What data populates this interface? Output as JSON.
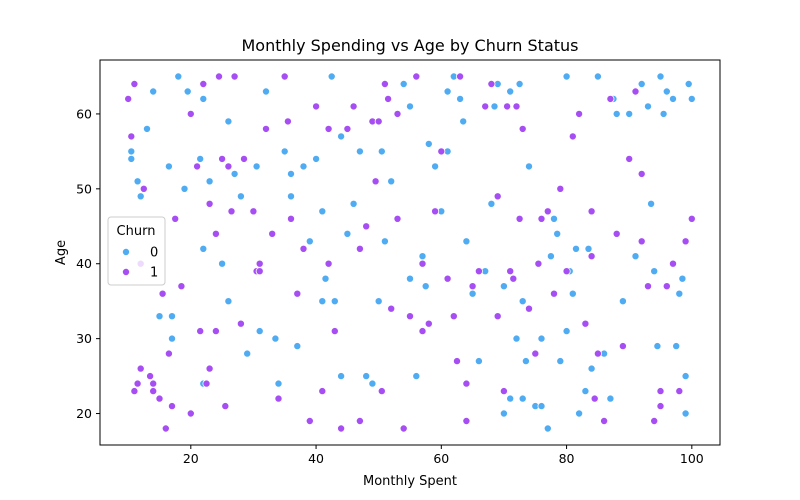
{
  "chart_data": {
    "type": "scatter",
    "title": "Monthly Spending vs Age by Churn Status",
    "xlabel": "Monthly Spent",
    "ylabel": "Age",
    "xlim": [
      5.5,
      104.5
    ],
    "ylim": [
      15.8,
      67.2
    ],
    "xticks": [
      20,
      40,
      60,
      80,
      100
    ],
    "yticks": [
      20,
      30,
      40,
      50,
      60
    ],
    "grid": false,
    "legend": {
      "title": "Churn",
      "placement": "center-left"
    },
    "series": [
      {
        "name": "0",
        "color": "#4facf3",
        "points": [
          [
            10.5,
            54
          ],
          [
            10.5,
            55
          ],
          [
            11.5,
            51
          ],
          [
            12,
            49
          ],
          [
            13,
            58
          ],
          [
            15,
            33
          ],
          [
            16.5,
            53
          ],
          [
            17,
            33
          ],
          [
            18,
            65
          ],
          [
            19,
            50
          ],
          [
            19.5,
            63
          ],
          [
            21.5,
            54
          ],
          [
            22,
            42
          ],
          [
            22,
            62
          ],
          [
            23,
            51
          ],
          [
            25,
            40
          ],
          [
            26,
            59
          ],
          [
            27,
            52
          ],
          [
            28,
            49
          ],
          [
            29,
            28
          ],
          [
            30.5,
            53
          ],
          [
            31,
            31
          ],
          [
            32,
            63
          ],
          [
            33.5,
            30
          ],
          [
            34,
            24
          ],
          [
            35,
            55
          ],
          [
            36,
            49
          ],
          [
            37,
            29
          ],
          [
            38,
            53
          ],
          [
            39,
            43
          ],
          [
            40,
            54
          ],
          [
            41,
            47
          ],
          [
            41.5,
            38
          ],
          [
            42.5,
            65
          ],
          [
            43,
            35
          ],
          [
            44,
            57
          ],
          [
            45,
            44
          ],
          [
            46,
            48
          ],
          [
            47,
            55
          ],
          [
            48,
            25
          ],
          [
            49,
            24
          ],
          [
            50,
            35
          ],
          [
            50.5,
            55
          ],
          [
            51,
            43
          ],
          [
            52,
            51
          ],
          [
            53,
            46
          ],
          [
            54,
            64
          ],
          [
            55,
            38
          ],
          [
            56,
            25
          ],
          [
            57,
            41
          ],
          [
            57.5,
            37
          ],
          [
            58,
            56
          ],
          [
            59,
            53
          ],
          [
            60,
            47
          ],
          [
            61,
            63
          ],
          [
            62,
            65
          ],
          [
            63,
            62
          ],
          [
            63.5,
            59
          ],
          [
            64,
            43
          ],
          [
            65,
            36
          ],
          [
            66,
            27
          ],
          [
            67,
            39
          ],
          [
            68,
            48
          ],
          [
            68.5,
            61
          ],
          [
            69,
            64
          ],
          [
            70,
            20
          ],
          [
            70,
            37
          ],
          [
            71,
            63
          ],
          [
            72,
            30
          ],
          [
            72.5,
            64
          ],
          [
            73,
            35
          ],
          [
            73.5,
            27
          ],
          [
            74,
            53
          ],
          [
            75,
            21
          ],
          [
            76,
            30
          ],
          [
            77,
            18
          ],
          [
            77.5,
            41
          ],
          [
            78,
            46
          ],
          [
            78.5,
            44
          ],
          [
            79,
            27
          ],
          [
            80,
            31
          ],
          [
            80,
            65
          ],
          [
            80.5,
            39
          ],
          [
            81,
            36
          ],
          [
            81.5,
            42
          ],
          [
            82,
            20
          ],
          [
            83,
            23
          ],
          [
            83.5,
            42
          ],
          [
            84,
            26
          ],
          [
            85,
            65
          ],
          [
            86,
            28
          ],
          [
            87,
            22
          ],
          [
            87.5,
            62
          ],
          [
            88,
            60
          ],
          [
            89,
            35
          ],
          [
            90,
            60
          ],
          [
            91,
            41
          ],
          [
            92,
            64
          ],
          [
            93,
            61
          ],
          [
            93.5,
            48
          ],
          [
            94,
            39
          ],
          [
            94.5,
            29
          ],
          [
            95,
            65
          ],
          [
            95.5,
            60
          ],
          [
            96,
            63
          ],
          [
            97,
            62
          ],
          [
            97.5,
            29
          ],
          [
            98,
            36
          ],
          [
            98.5,
            38
          ],
          [
            99,
            20
          ],
          [
            99,
            25
          ],
          [
            99.5,
            64
          ],
          [
            100,
            62
          ],
          [
            39,
            43
          ],
          [
            41,
            35
          ],
          [
            44,
            25
          ],
          [
            36,
            52
          ],
          [
            26,
            35
          ],
          [
            22,
            24
          ],
          [
            14,
            63
          ],
          [
            17,
            30
          ],
          [
            55,
            61
          ],
          [
            58,
            56
          ],
          [
            61,
            55
          ],
          [
            71,
            22
          ],
          [
            73,
            22
          ],
          [
            76,
            21
          ]
        ]
      },
      {
        "name": "1",
        "color": "#a64ef3",
        "points": [
          [
            10,
            62
          ],
          [
            10.5,
            57
          ],
          [
            11,
            64
          ],
          [
            11,
            23
          ],
          [
            11.5,
            24
          ],
          [
            12,
            26
          ],
          [
            12,
            40
          ],
          [
            12.5,
            50
          ],
          [
            13.5,
            25
          ],
          [
            14,
            23
          ],
          [
            15,
            22
          ],
          [
            15.5,
            36
          ],
          [
            16,
            18
          ],
          [
            16.5,
            28
          ],
          [
            17,
            21
          ],
          [
            17.5,
            46
          ],
          [
            18.5,
            37
          ],
          [
            20,
            60
          ],
          [
            21,
            53
          ],
          [
            21.5,
            31
          ],
          [
            22,
            64
          ],
          [
            22.5,
            24
          ],
          [
            23,
            26
          ],
          [
            23,
            48
          ],
          [
            24,
            44
          ],
          [
            24.5,
            65
          ],
          [
            25,
            54
          ],
          [
            25.5,
            21
          ],
          [
            26,
            53
          ],
          [
            26.5,
            47
          ],
          [
            27,
            65
          ],
          [
            28,
            32
          ],
          [
            28.5,
            54
          ],
          [
            30,
            47
          ],
          [
            30.5,
            39
          ],
          [
            31,
            40
          ],
          [
            32,
            58
          ],
          [
            33,
            44
          ],
          [
            34,
            22
          ],
          [
            35,
            65
          ],
          [
            35.5,
            59
          ],
          [
            36,
            46
          ],
          [
            37,
            36
          ],
          [
            38,
            42
          ],
          [
            39,
            19
          ],
          [
            40,
            61
          ],
          [
            41,
            23
          ],
          [
            42,
            40
          ],
          [
            43,
            31
          ],
          [
            44,
            18
          ],
          [
            45,
            58
          ],
          [
            46,
            61
          ],
          [
            47,
            19
          ],
          [
            48,
            45
          ],
          [
            49,
            59
          ],
          [
            49.5,
            51
          ],
          [
            50,
            59
          ],
          [
            50.5,
            23
          ],
          [
            51,
            64
          ],
          [
            51.5,
            62
          ],
          [
            52,
            34
          ],
          [
            53,
            46
          ],
          [
            54,
            18
          ],
          [
            55,
            33
          ],
          [
            56,
            65
          ],
          [
            57,
            40
          ],
          [
            58,
            32
          ],
          [
            59,
            47
          ],
          [
            60,
            55
          ],
          [
            61,
            38
          ],
          [
            62,
            33
          ],
          [
            62.5,
            27
          ],
          [
            63,
            65
          ],
          [
            64,
            19
          ],
          [
            65,
            37
          ],
          [
            66,
            39
          ],
          [
            67,
            61
          ],
          [
            68,
            64
          ],
          [
            69,
            49
          ],
          [
            70,
            23
          ],
          [
            70.5,
            61
          ],
          [
            71,
            39
          ],
          [
            71.5,
            38
          ],
          [
            72,
            61
          ],
          [
            72.5,
            46
          ],
          [
            73,
            58
          ],
          [
            74,
            34
          ],
          [
            75,
            28
          ],
          [
            75.5,
            40
          ],
          [
            76,
            46
          ],
          [
            77,
            47
          ],
          [
            78,
            36
          ],
          [
            79,
            50
          ],
          [
            80,
            39
          ],
          [
            81,
            57
          ],
          [
            82,
            60
          ],
          [
            83,
            32
          ],
          [
            84,
            41
          ],
          [
            84.5,
            22
          ],
          [
            85,
            28
          ],
          [
            86,
            19
          ],
          [
            87,
            62
          ],
          [
            88,
            44
          ],
          [
            89,
            29
          ],
          [
            90,
            54
          ],
          [
            91,
            63
          ],
          [
            92,
            52
          ],
          [
            93,
            37
          ],
          [
            94,
            19
          ],
          [
            95,
            23
          ],
          [
            96,
            37
          ],
          [
            97,
            40
          ],
          [
            98,
            23
          ],
          [
            99,
            43
          ],
          [
            100,
            46
          ],
          [
            14,
            24
          ],
          [
            20,
            20
          ],
          [
            24,
            31
          ],
          [
            31,
            39
          ],
          [
            42,
            58
          ],
          [
            47,
            42
          ],
          [
            53,
            60
          ],
          [
            57,
            31
          ],
          [
            64,
            24
          ],
          [
            69,
            33
          ],
          [
            84,
            47
          ],
          [
            92,
            43
          ],
          [
            95,
            21
          ]
        ]
      }
    ]
  }
}
